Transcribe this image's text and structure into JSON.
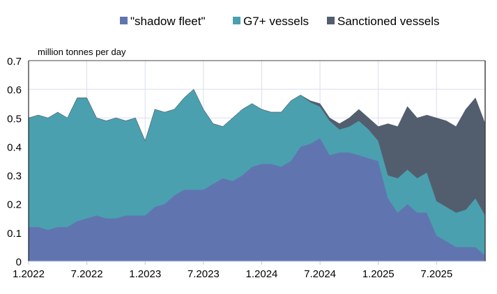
{
  "chart_data": {
    "type": "area",
    "stacked": true,
    "ylabel": "million tonnes per day",
    "ylim": [
      0,
      0.7
    ],
    "yticks": [
      "0",
      "0.1",
      "0.2",
      "0.3",
      "0.4",
      "0.5",
      "0.6",
      "0.7"
    ],
    "xtick_labels": [
      "1.2022",
      "7.2022",
      "1.2023",
      "7.2023",
      "1.2024",
      "7.2024",
      "1.2025",
      "7.2025"
    ],
    "grid": true,
    "legend_position": "top",
    "x_start": "1.2022",
    "x_resolution": "monthly",
    "series": [
      {
        "name": "\"shadow fleet\"",
        "color": "#6075B0",
        "values": [
          0.12,
          0.12,
          0.11,
          0.12,
          0.12,
          0.14,
          0.15,
          0.16,
          0.15,
          0.15,
          0.16,
          0.16,
          0.16,
          0.19,
          0.2,
          0.23,
          0.25,
          0.25,
          0.25,
          0.27,
          0.29,
          0.28,
          0.3,
          0.33,
          0.34,
          0.34,
          0.33,
          0.35,
          0.4,
          0.41,
          0.43,
          0.37,
          0.38,
          0.38,
          0.37,
          0.36,
          0.35,
          0.22,
          0.17,
          0.2,
          0.17,
          0.17,
          0.09,
          0.07,
          0.05,
          0.05,
          0.05,
          0.02
        ]
      },
      {
        "name": "G7+ vessels",
        "color": "#4AA0AF",
        "values": [
          0.38,
          0.39,
          0.39,
          0.4,
          0.38,
          0.43,
          0.42,
          0.34,
          0.34,
          0.35,
          0.33,
          0.34,
          0.26,
          0.34,
          0.32,
          0.3,
          0.32,
          0.35,
          0.28,
          0.21,
          0.18,
          0.22,
          0.23,
          0.22,
          0.19,
          0.18,
          0.19,
          0.21,
          0.18,
          0.145,
          0.11,
          0.12,
          0.08,
          0.09,
          0.12,
          0.1,
          0.07,
          0.08,
          0.12,
          0.12,
          0.12,
          0.14,
          0.12,
          0.12,
          0.12,
          0.13,
          0.17,
          0.14
        ]
      },
      {
        "name": "Sanctioned vessels",
        "color": "#525E6E",
        "values": [
          0,
          0,
          0,
          0,
          0,
          0,
          0,
          0,
          0,
          0,
          0,
          0,
          0,
          0,
          0,
          0,
          0,
          0,
          0,
          0,
          0,
          0,
          0,
          0,
          0,
          0,
          0,
          0,
          0,
          0.005,
          0.01,
          0.01,
          0.02,
          0.03,
          0.04,
          0.04,
          0.05,
          0.18,
          0.18,
          0.22,
          0.21,
          0.2,
          0.29,
          0.3,
          0.3,
          0.35,
          0.35,
          0.32
        ]
      }
    ]
  }
}
